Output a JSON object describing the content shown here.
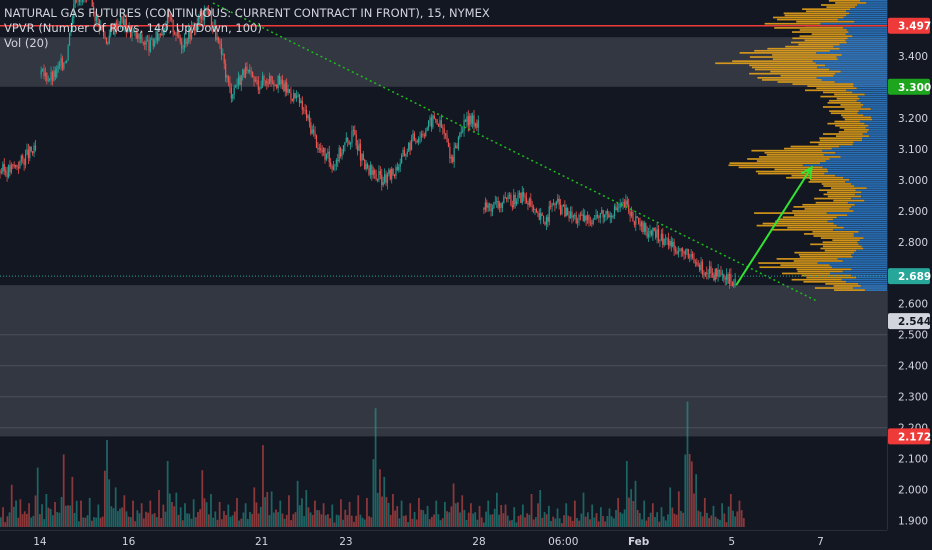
{
  "legend": {
    "title": "NATURAL GAS FUTURES (CONTINUOUS: CURRENT CONTRACT IN FRONT), 15, NYMEX",
    "vpvr": "VPVR (Number Of Rows, 140, Up/Down, 100)",
    "vol": "Vol (20)"
  },
  "colors": {
    "background": "#131722",
    "up": "#26a69a",
    "down": "#ef5350",
    "trendline": "#1bbd1b",
    "arrow": "#32e432",
    "vpvr_up": "#2e7fd0",
    "vpvr_down": "#e6a21a"
  },
  "chart_data": {
    "type": "candlestick",
    "interval": "15",
    "exchange": "NYMEX",
    "x_ticks": [
      "14",
      "16",
      "21",
      "23",
      "28",
      "06:00",
      "Feb",
      "5",
      "7"
    ],
    "y_ticks": [
      "3.400",
      "3.200",
      "3.100",
      "3.000",
      "2.900",
      "2.800",
      "2.600",
      "2.500",
      "2.400",
      "2.300",
      "2.200",
      "2.100",
      "2.000",
      "1.900"
    ],
    "ylim": [
      1.87,
      3.58
    ],
    "price_tags": [
      {
        "label": "3.497",
        "value": 3.497,
        "color": "#ef3a3a",
        "text_color": "#ffffff"
      },
      {
        "label": "3.300",
        "value": 3.3,
        "color": "#1ea51e",
        "text_color": "#ffffff"
      },
      {
        "label": "2.689",
        "value": 2.689,
        "color": "#27a69a",
        "text_color": "#ffffff"
      },
      {
        "label": "2.544",
        "value": 2.544,
        "color": "#d1d4dc",
        "text_color": "#131722"
      },
      {
        "label": "2.172",
        "value": 2.172,
        "color": "#ef3a3a",
        "text_color": "#ffffff"
      }
    ],
    "zones": [
      {
        "from": 3.3,
        "to": 3.46
      },
      {
        "from": 2.172,
        "to": 2.66
      }
    ],
    "price_path": [
      [
        0,
        3.03
      ],
      [
        0.01,
        3.03
      ],
      [
        0.02,
        3.05
      ],
      [
        0.035,
        3.09
      ],
      [
        0.04,
        3.16
      ],
      [
        0.045,
        3.34
      ],
      [
        0.06,
        3.33
      ],
      [
        0.075,
        3.4
      ],
      [
        0.085,
        3.6
      ],
      [
        0.1,
        3.58
      ],
      [
        0.12,
        3.45
      ],
      [
        0.135,
        3.52
      ],
      [
        0.15,
        3.47
      ],
      [
        0.17,
        3.43
      ],
      [
        0.19,
        3.52
      ],
      [
        0.205,
        3.44
      ],
      [
        0.22,
        3.5
      ],
      [
        0.235,
        3.55
      ],
      [
        0.25,
        3.4
      ],
      [
        0.26,
        3.28
      ],
      [
        0.275,
        3.35
      ],
      [
        0.29,
        3.31
      ],
      [
        0.305,
        3.33
      ],
      [
        0.32,
        3.3
      ],
      [
        0.335,
        3.26
      ],
      [
        0.345,
        3.21
      ],
      [
        0.36,
        3.1
      ],
      [
        0.375,
        3.05
      ],
      [
        0.39,
        3.12
      ],
      [
        0.4,
        3.15
      ],
      [
        0.41,
        3.04
      ],
      [
        0.425,
        3.01
      ],
      [
        0.435,
        3.0
      ],
      [
        0.445,
        3.03
      ],
      [
        0.455,
        3.08
      ],
      [
        0.465,
        3.13
      ],
      [
        0.475,
        3.15
      ],
      [
        0.49,
        3.2
      ],
      [
        0.5,
        3.16
      ],
      [
        0.51,
        3.06
      ],
      [
        0.52,
        3.17
      ],
      [
        0.53,
        3.19
      ],
      [
        0.54,
        3.19
      ],
      [
        0.545,
        2.91
      ],
      [
        0.56,
        2.92
      ],
      [
        0.575,
        2.93
      ],
      [
        0.59,
        2.95
      ],
      [
        0.605,
        2.88
      ],
      [
        0.615,
        2.87
      ],
      [
        0.625,
        2.93
      ],
      [
        0.64,
        2.89
      ],
      [
        0.655,
        2.87
      ],
      [
        0.67,
        2.88
      ],
      [
        0.69,
        2.9
      ],
      [
        0.705,
        2.92
      ],
      [
        0.72,
        2.85
      ],
      [
        0.74,
        2.82
      ],
      [
        0.76,
        2.79
      ],
      [
        0.78,
        2.74
      ],
      [
        0.8,
        2.7
      ],
      [
        0.815,
        2.68
      ],
      [
        0.83,
        2.67
      ]
    ],
    "trendline": {
      "start": [
        0.24,
        3.57
      ],
      "end": [
        0.92,
        2.61
      ]
    },
    "projection_arrow": {
      "start": [
        0.83,
        2.66
      ],
      "end": [
        0.915,
        3.04
      ]
    },
    "volume": [
      0.15,
      0.32,
      0.21,
      0.18,
      0.45,
      0.25,
      0.19,
      0.55,
      0.38,
      0.2,
      0.22,
      0.17,
      0.66,
      0.3,
      0.24,
      0.2,
      0.18,
      0.2,
      0.28,
      0.5,
      0.26,
      0.18,
      0.21,
      0.43,
      0.25,
      0.19,
      0.17,
      0.22,
      0.18,
      0.3,
      0.62,
      0.27,
      0.2,
      0.24,
      0.35,
      0.28,
      0.2,
      0.18,
      0.17,
      0.21,
      0.19,
      0.24,
      0.22,
      0.9,
      0.38,
      0.25,
      0.2,
      0.18,
      0.22,
      0.16,
      0.2,
      0.19,
      0.33,
      0.24,
      0.18,
      0.16,
      0.2,
      0.26,
      0.17,
      0.15,
      0.17,
      0.25,
      0.28,
      0.16,
      0.14,
      0.18,
      0.2,
      0.26,
      0.17,
      0.15,
      0.14,
      0.22,
      0.5,
      0.35,
      0.2,
      0.18,
      0.15,
      0.3,
      0.27,
      0.95,
      0.4,
      0.22,
      0.16,
      0.18,
      0.25,
      0.2
    ]
  }
}
